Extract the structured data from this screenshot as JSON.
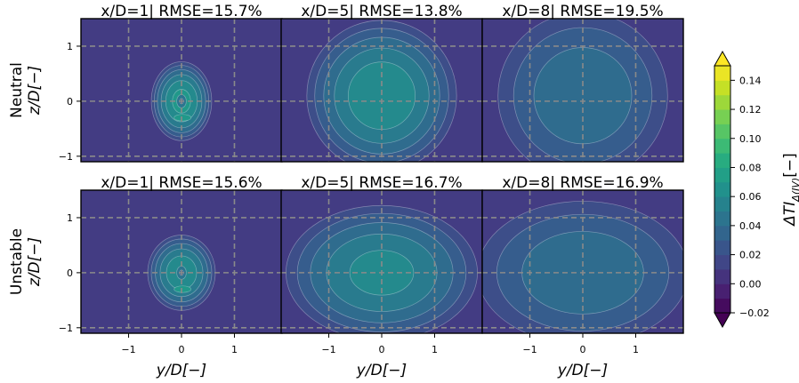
{
  "chart_data": {
    "type": "heatmap",
    "rows": [
      {
        "label": "Neutral",
        "panels": [
          {
            "title": "x/D=1| RMSE=15.7%",
            "x_over_D": 1,
            "rmse_percent": 15.7,
            "peak_value": 0.07,
            "center": [
              0.0,
              0.0
            ],
            "rx": 0.62,
            "ry": 0.78,
            "dark_core": true
          },
          {
            "title": "x/D=5| RMSE=13.8%",
            "x_over_D": 5,
            "rmse_percent": 13.8,
            "peak_value": 0.065,
            "center": [
              0.0,
              0.1
            ],
            "rx": 1.55,
            "ry": 1.5,
            "dark_core": false
          },
          {
            "title": "x/D=8| RMSE=19.5%",
            "x_over_D": 8,
            "rmse_percent": 19.5,
            "peak_value": 0.045,
            "center": [
              0.0,
              0.1
            ],
            "rx": 1.85,
            "ry": 1.75,
            "dark_core": false
          }
        ]
      },
      {
        "label": "Unstable",
        "panels": [
          {
            "title": "x/D=1| RMSE=15.6%",
            "x_over_D": 1,
            "rmse_percent": 15.6,
            "peak_value": 0.065,
            "center": [
              0.0,
              0.0
            ],
            "rx": 0.7,
            "ry": 0.75,
            "dark_core": true
          },
          {
            "title": "x/D=5| RMSE=16.7%",
            "x_over_D": 5,
            "rmse_percent": 16.7,
            "peak_value": 0.06,
            "center": [
              0.0,
              0.0
            ],
            "rx": 2.0,
            "ry": 1.35,
            "dark_core": false
          },
          {
            "title": "x/D=8| RMSE=16.9%",
            "x_over_D": 8,
            "rmse_percent": 16.9,
            "peak_value": 0.045,
            "center": [
              0.0,
              0.0
            ],
            "rx": 2.3,
            "ry": 1.5,
            "dark_core": false
          }
        ]
      }
    ],
    "row_ylabel": "z/D[−]",
    "xlabel": "y/D[−]",
    "xlim": [
      -1.9,
      1.9
    ],
    "ylim": [
      -1.1,
      1.5
    ],
    "xticks": [
      -1,
      0,
      1
    ],
    "yticks": [
      -1,
      0,
      1
    ],
    "xtick_labels": [
      "−1",
      "0",
      "1"
    ],
    "ytick_labels": [
      "−1",
      "0",
      "1"
    ],
    "grid_lines_x": [
      -1,
      0,
      1
    ],
    "grid_lines_y": [
      -1,
      0,
      1
    ],
    "grid": true,
    "colorbar": {
      "label": "ΔTI",
      "label_subscript": "Δ(IV)",
      "label_suffix": "[−]",
      "min": -0.02,
      "max": 0.15,
      "ticks": [
        -0.02,
        0.0,
        0.02,
        0.04,
        0.06,
        0.08,
        0.1,
        0.12,
        0.14
      ],
      "tick_labels": [
        "−0.02",
        "0.00",
        "0.02",
        "0.04",
        "0.06",
        "0.08",
        "0.10",
        "0.12",
        "0.14"
      ],
      "extend": "both",
      "colormap": "viridis"
    }
  }
}
